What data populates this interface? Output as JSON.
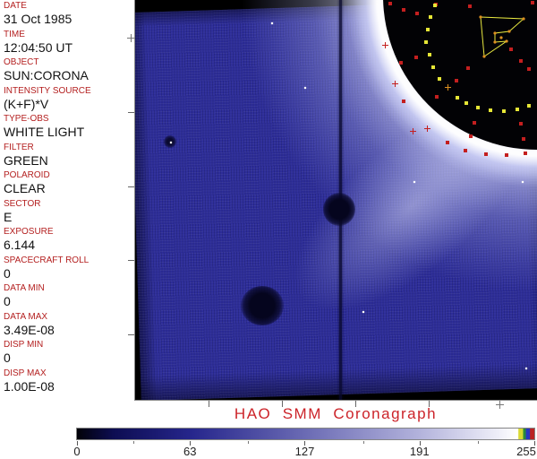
{
  "metadata_panel": {
    "label_color": "#b42020",
    "fields": [
      {
        "label": "DATE",
        "value": "31 Oct 1985"
      },
      {
        "label": "TIME",
        "value": "12:04:50 UT"
      },
      {
        "label": "OBJECT",
        "value": "SUN:CORONA"
      },
      {
        "label": "INTENSITY SOURCE",
        "value": "(K+F)*V"
      },
      {
        "label": "TYPE-OBS",
        "value": "WHITE LIGHT"
      },
      {
        "label": "FILTER",
        "value": "GREEN"
      },
      {
        "label": "POLAROID",
        "value": "CLEAR"
      },
      {
        "label": "SECTOR",
        "value": "E"
      },
      {
        "label": "EXPOSURE",
        "value": "6.144"
      },
      {
        "label": "SPACECRAFT ROLL",
        "value": "0"
      },
      {
        "label": "DATA MIN",
        "value": "0"
      },
      {
        "label": "DATA MAX",
        "value": "3.49E-08"
      },
      {
        "label": "DISP MIN",
        "value": "0"
      },
      {
        "label": "DISP MAX",
        "value": "1.00E-08"
      }
    ]
  },
  "footer": {
    "title": "HAO  SMM  Coronagraph",
    "title_color": "#cc2329"
  },
  "colorbar": {
    "min": 0,
    "max": 255,
    "tick_values": [
      0,
      63,
      127,
      191,
      255
    ],
    "tick_labels": [
      "0",
      "63",
      "127",
      "191",
      "255"
    ],
    "minor_tick_values": [
      31.5,
      95.5,
      159.5,
      223.5
    ],
    "overflow_stripe_colors": [
      "#d8d832",
      "#2a8a3a",
      "#2a35c0",
      "#bb2222"
    ]
  },
  "image_panel": {
    "colors": {
      "base_blue": "#2d2d99",
      "marker_red": "#c41f1f",
      "marker_yellow": "#e6e636",
      "polygon_yellow": "#e8e840",
      "vertex_orange": "#dd9020"
    },
    "axis": {
      "left_ticks_y": [
        125,
        208,
        290,
        373
      ],
      "left_plus": [
        146,
        42
      ],
      "bottom_ticks_x": [
        233,
        315,
        397,
        479
      ],
      "bottom_plus": [
        558,
        451
      ]
    },
    "marks": {
      "red_dots": [
        [
          286,
          4
        ],
        [
          301,
          11
        ],
        [
          316,
          15
        ],
        [
          337,
          5
        ],
        [
          375,
          7
        ],
        [
          445,
          3
        ],
        [
          298,
          70
        ],
        [
          315,
          64
        ],
        [
          301,
          113
        ],
        [
          338,
          108
        ],
        [
          421,
          55
        ],
        [
          432,
          68
        ],
        [
          373,
          76
        ],
        [
          360,
          90
        ],
        [
          441,
          77
        ],
        [
          380,
          137
        ],
        [
          432,
          138
        ],
        [
          376,
          152
        ],
        [
          435,
          155
        ],
        [
          350,
          159
        ],
        [
          370,
          168
        ],
        [
          393,
          172
        ],
        [
          416,
          173
        ],
        [
          437,
          171
        ]
      ],
      "red_crosses": [
        [
          280,
          50
        ],
        [
          291,
          93
        ],
        [
          311,
          146
        ],
        [
          327,
          143
        ]
      ],
      "yellow_dots": [
        [
          336,
          6
        ],
        [
          331,
          19
        ],
        [
          328,
          33
        ],
        [
          326,
          47
        ],
        [
          330,
          61
        ],
        [
          334,
          75
        ],
        [
          341,
          88
        ],
        [
          361,
          109
        ],
        [
          371,
          115
        ],
        [
          384,
          120
        ],
        [
          398,
          123
        ],
        [
          413,
          124
        ],
        [
          428,
          122
        ],
        [
          441,
          118
        ]
      ],
      "yellow_crosses": [
        [
          350,
          97
        ]
      ],
      "polygon_points": [
        [
          387,
          19
        ],
        [
          435,
          21
        ],
        [
          419,
          35
        ],
        [
          403,
          37
        ],
        [
          403,
          47
        ],
        [
          416,
          46
        ],
        [
          391,
          63
        ]
      ],
      "polygon_extra_vertex": [
        410,
        42
      ],
      "white_specks": [
        [
          153,
          25
        ],
        [
          190,
          97
        ],
        [
          255,
          347
        ],
        [
          312,
          202
        ],
        [
          433,
          202
        ],
        [
          437,
          410
        ],
        [
          40,
          158
        ]
      ]
    }
  }
}
